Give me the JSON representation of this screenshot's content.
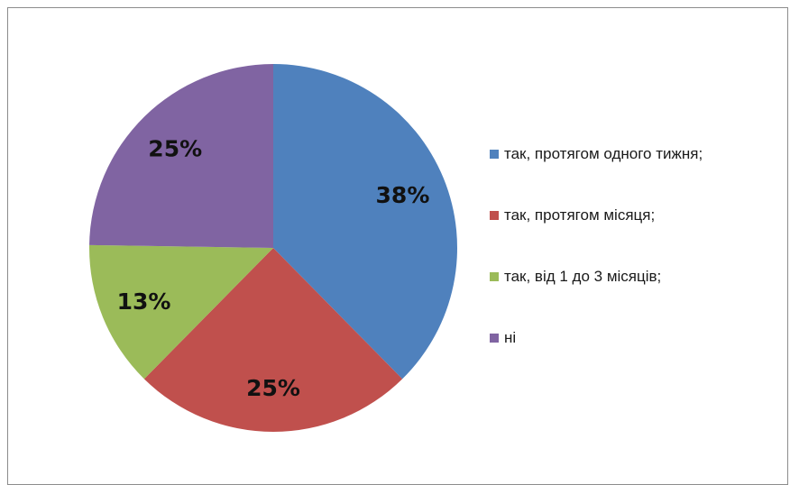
{
  "chart_data": {
    "type": "pie",
    "title": "",
    "slices": [
      {
        "label": "так, протягом одного тижня;",
        "value": 38,
        "display": "38%",
        "color": "#4f81bd"
      },
      {
        "label": "так, протягом місяця;",
        "value": 25,
        "display": "25%",
        "color": "#c0504d"
      },
      {
        "label": "так, від 1 до 3 місяців;",
        "value": 13,
        "display": "13%",
        "color": "#9bbb59"
      },
      {
        "label": "ні",
        "value": 25,
        "display": "25%",
        "color": "#8064a2"
      }
    ],
    "legend_placement": "right",
    "start_angle": "12 o'clock",
    "direction": "clockwise"
  }
}
